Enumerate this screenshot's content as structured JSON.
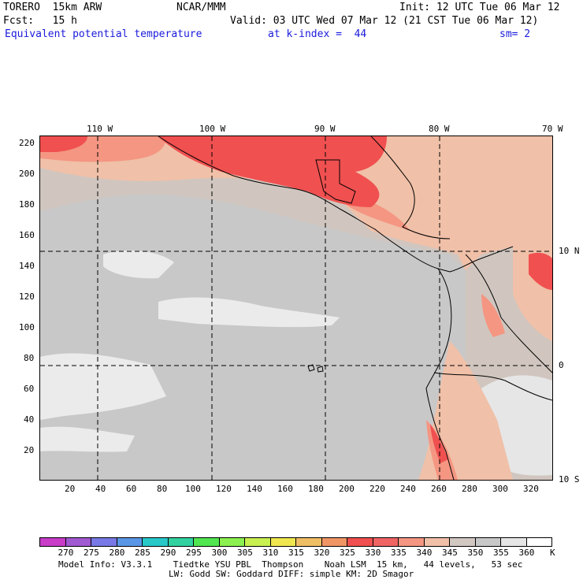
{
  "header": {
    "model": "TORERO  15km ARW",
    "center": "NCAR/MMM",
    "init": "Init: 12 UTC Tue 06 Mar 12",
    "fcst": "Fcst:   15 h",
    "valid": "Valid: 03 UTC Wed 07 Mar 12 (21 CST Tue 06 Mar 12)",
    "field": "Equivalent potential temperature",
    "level": "at k-index =  44",
    "smooth": "sm= 2"
  },
  "map": {
    "top_lon_labels": [
      "110 W",
      "100 W",
      "90 W",
      "80 W",
      "70 W"
    ],
    "right_lat_labels": [
      "10 N",
      "0",
      "10 S"
    ],
    "y_ticks": [
      "220",
      "200",
      "180",
      "160",
      "140",
      "120",
      "100",
      "80",
      "60",
      "40",
      "20"
    ],
    "x_ticks": [
      "20",
      "40",
      "60",
      "80",
      "100",
      "120",
      "140",
      "160",
      "180",
      "200",
      "220",
      "240",
      "260",
      "280",
      "300",
      "320"
    ]
  },
  "colorbar": {
    "unit": "K",
    "labels": [
      "270",
      "275",
      "280",
      "285",
      "290",
      "295",
      "300",
      "305",
      "310",
      "315",
      "320",
      "325",
      "330",
      "335",
      "340",
      "345",
      "350",
      "355",
      "360"
    ],
    "colors": [
      "#c83cc8",
      "#a05ad2",
      "#7878e6",
      "#5a96e6",
      "#28c8c8",
      "#32d2a0",
      "#50e650",
      "#8cf050",
      "#c8f050",
      "#f0e650",
      "#f0be64",
      "#f09664",
      "#f05050",
      "#f06464",
      "#f49682",
      "#f0c0a8",
      "#d2c8c2",
      "#c8c8c8",
      "#e6e6e6",
      "#ffffff"
    ]
  },
  "footer": {
    "line1": "Model Info: V3.3.1    Tiedtke YSU PBL  Thompson    Noah LSM  15 km,   44 levels,   53 sec",
    "line2": "LW: Godd SW: Goddard DIFF: simple KM: 2D Smagor"
  }
}
